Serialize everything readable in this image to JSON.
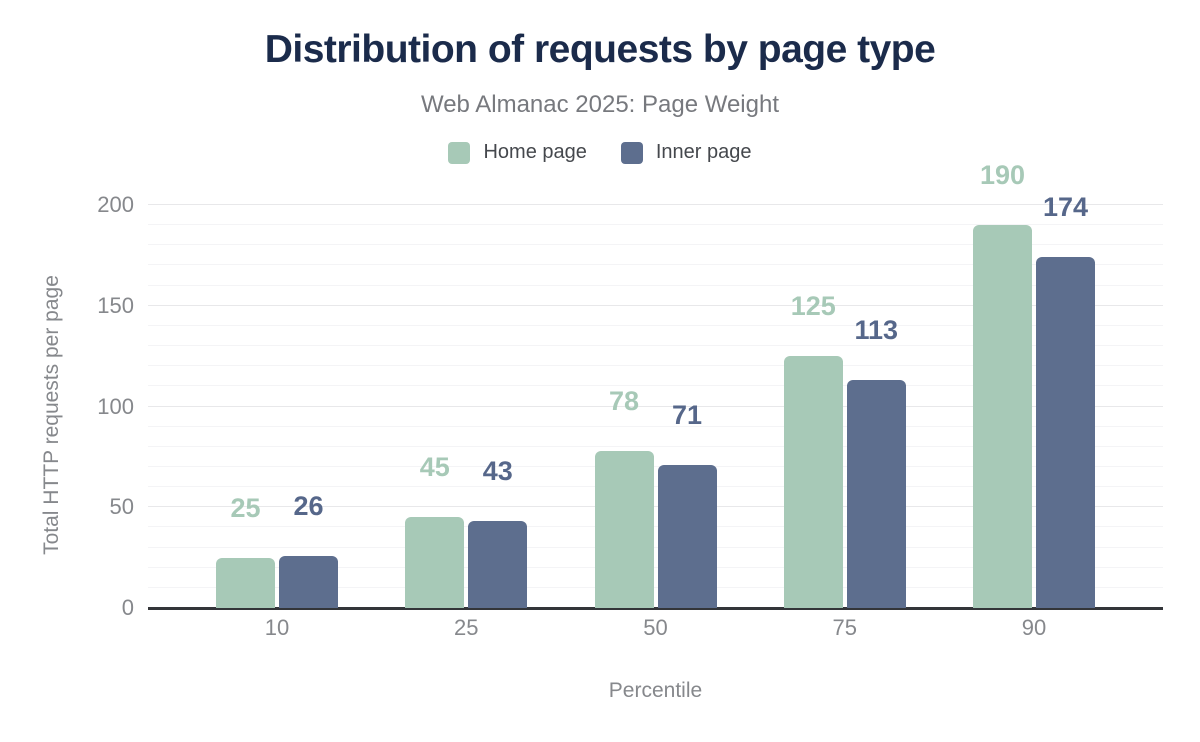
{
  "title": "Distribution of requests by page type",
  "subtitle": "Web Almanac 2025: Page Weight",
  "legend": [
    {
      "label": "Home page",
      "color": "#a7c9b7"
    },
    {
      "label": "Inner page",
      "color": "#5d6e8e"
    }
  ],
  "chart_data": {
    "type": "bar",
    "title": "Distribution of requests by page type",
    "subtitle": "Web Almanac 2025: Page Weight",
    "categories": [
      "10",
      "25",
      "50",
      "75",
      "90"
    ],
    "series": [
      {
        "name": "Home page",
        "values": [
          25,
          45,
          78,
          125,
          190
        ],
        "color": "#a7c9b7",
        "label_color": "#a7c9b7"
      },
      {
        "name": "Inner page",
        "values": [
          26,
          43,
          71,
          113,
          174
        ],
        "color": "#5d6e8e",
        "label_color": "#56678a"
      }
    ],
    "xlabel": "Percentile",
    "ylabel": "Total HTTP requests per page",
    "ylim": [
      0,
      200
    ],
    "yticks": [
      0,
      50,
      100,
      150,
      200
    ],
    "minor_grid_step": 10,
    "grid": true,
    "legend_position": "top",
    "data_labels": true
  },
  "colors": {
    "background": "#ffffff",
    "title": "#1b2b4b",
    "subtitle": "#77797e",
    "legend_text": "#45484d",
    "tick_text": "#86888c",
    "axis_line": "#333539",
    "major_grid": "#e8e8ea",
    "minor_grid": "#f4f4f6"
  }
}
